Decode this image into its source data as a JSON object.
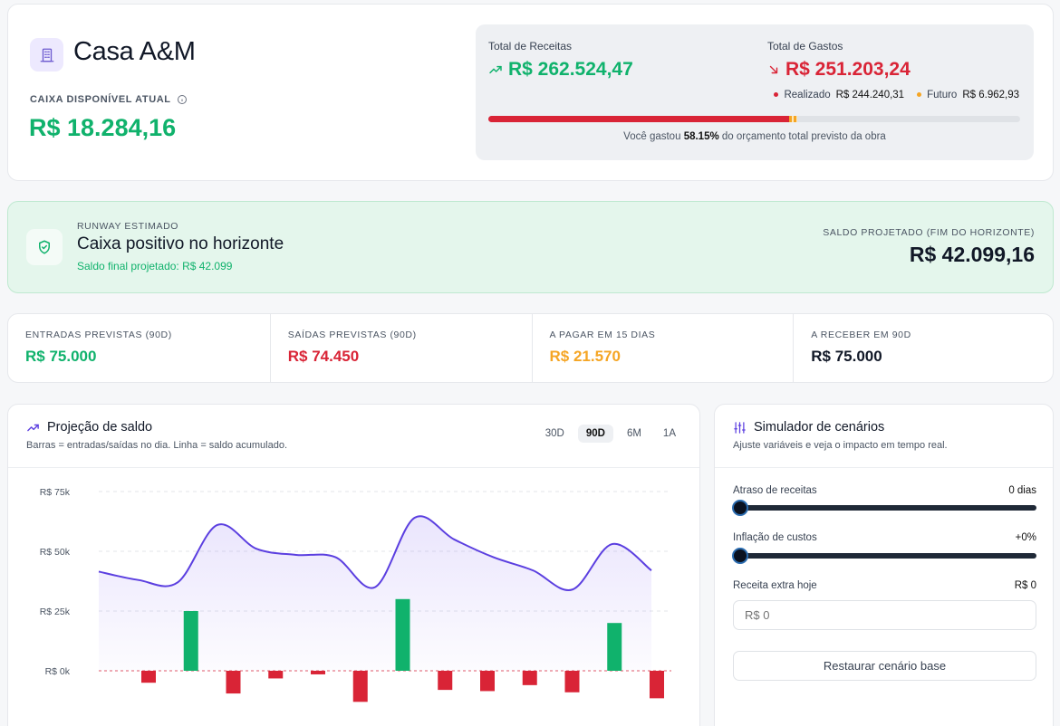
{
  "header": {
    "title": "Casa A&M",
    "cash_label": "CAIXA DISPONÍVEL ATUAL",
    "cash_value": "R$ 18.284,16"
  },
  "summary": {
    "receitas_label": "Total de Receitas",
    "receitas_value": "R$ 262.524,47",
    "gastos_label": "Total de Gastos",
    "gastos_value": "R$ 251.203,24",
    "realizado_label": "Realizado",
    "realizado_value": "R$ 244.240,31",
    "futuro_label": "Futuro",
    "futuro_value": "R$ 6.962,93",
    "budget_pct": 58.15,
    "budget_real_fraction": 0.565,
    "budget_future_fraction": 0.016,
    "note_prefix": "Você gastou",
    "note_pct": "58.15%",
    "note_suffix": "do orçamento total previsto da obra",
    "colors": {
      "green": "#10b26c",
      "red": "#d92436",
      "orange": "#f5a524"
    }
  },
  "runway": {
    "label": "RUNWAY ESTIMADO",
    "title": "Caixa positivo no horizonte",
    "subtitle": "Saldo final projetado: R$ 42.099",
    "right_label": "SALDO PROJETADO (FIM DO HORIZONTE)",
    "right_value": "R$ 42.099,16"
  },
  "kpis": [
    {
      "label": "ENTRADAS PREVISTAS (90D)",
      "value": "R$ 75.000",
      "color": "#10b26c"
    },
    {
      "label": "SAÍDAS PREVISTAS (90D)",
      "value": "R$ 74.450",
      "color": "#d92436"
    },
    {
      "label": "A PAGAR EM 15 DIAS",
      "value": "R$ 21.570",
      "color": "#f5a524"
    },
    {
      "label": "A RECEBER EM 90D",
      "value": "R$ 75.000",
      "color": "#111827"
    }
  ],
  "chart": {
    "title": "Projeção de saldo",
    "subtitle": "Barras = entradas/saídas no dia. Linha = saldo acumulado.",
    "tabs": [
      "30D",
      "90D",
      "6M",
      "1A"
    ],
    "active_tab": "90D"
  },
  "chart_data": {
    "type": "bar",
    "y_ticks": [
      "R$ 75k",
      "R$ 50k",
      "R$ 25k",
      "R$ 0k"
    ],
    "ylim": [
      -15000,
      75000
    ],
    "bars": [
      -5000,
      25000,
      -9500,
      -3200,
      -1500,
      -13000,
      30000,
      -8000,
      -8500,
      -6000,
      -9000,
      20000,
      -11500
    ],
    "line": [
      41500,
      38000,
      37000,
      61000,
      51000,
      48500,
      47500,
      35000,
      64000,
      55000,
      47500,
      42000,
      34000,
      53000,
      42000
    ],
    "line_color": "#5b3fe0",
    "pos_color": "#10b26c",
    "neg_color": "#d92436"
  },
  "simulator": {
    "title": "Simulador de cenários",
    "subtitle": "Ajuste variáveis e veja o impacto em tempo real.",
    "delay_label": "Atraso de receitas",
    "delay_value": "0 dias",
    "inflation_label": "Inflação de custos",
    "inflation_value": "+0%",
    "extra_label": "Receita extra hoje",
    "extra_value": "R$ 0",
    "extra_placeholder": "R$ 0",
    "reset_label": "Restaurar cenário base"
  }
}
